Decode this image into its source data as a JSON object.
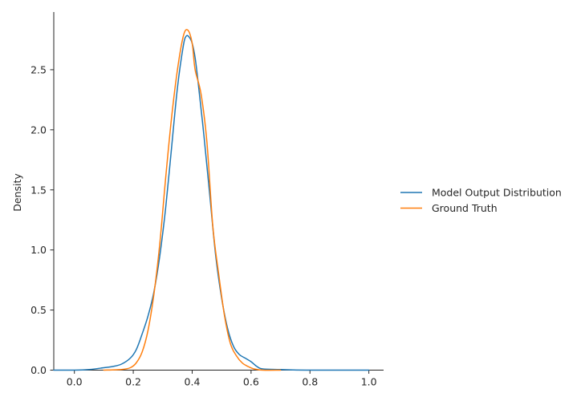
{
  "chart_data": {
    "type": "line",
    "title": "",
    "xlabel": "",
    "ylabel": "Density",
    "xlim": [
      -0.07,
      1.05
    ],
    "ylim": [
      0,
      2.98
    ],
    "x_ticks": [
      0.0,
      0.2,
      0.4,
      0.6,
      0.8,
      1.0
    ],
    "x_tick_labels": [
      "0.0",
      "0.2",
      "0.4",
      "0.6",
      "0.8",
      "1.0"
    ],
    "y_ticks": [
      0.0,
      0.5,
      1.0,
      1.5,
      2.0,
      2.5
    ],
    "y_tick_labels": [
      "0.0",
      "0.5",
      "1.0",
      "1.5",
      "2.0",
      "2.5"
    ],
    "grid": false,
    "legend_position": "right",
    "series": [
      {
        "name": "Model Output Distribution",
        "color": "#1f77b4",
        "points": [
          [
            -0.07,
            0.0
          ],
          [
            0.0,
            0.0
          ],
          [
            0.05,
            0.005
          ],
          [
            0.1,
            0.02
          ],
          [
            0.13,
            0.03
          ],
          [
            0.16,
            0.05
          ],
          [
            0.19,
            0.1
          ],
          [
            0.21,
            0.17
          ],
          [
            0.23,
            0.3
          ],
          [
            0.25,
            0.45
          ],
          [
            0.27,
            0.65
          ],
          [
            0.29,
            0.95
          ],
          [
            0.31,
            1.35
          ],
          [
            0.33,
            1.85
          ],
          [
            0.35,
            2.35
          ],
          [
            0.37,
            2.7
          ],
          [
            0.38,
            2.78
          ],
          [
            0.39,
            2.77
          ],
          [
            0.4,
            2.72
          ],
          [
            0.41,
            2.6
          ],
          [
            0.42,
            2.4
          ],
          [
            0.44,
            1.95
          ],
          [
            0.46,
            1.45
          ],
          [
            0.48,
            0.95
          ],
          [
            0.5,
            0.6
          ],
          [
            0.52,
            0.35
          ],
          [
            0.54,
            0.2
          ],
          [
            0.56,
            0.13
          ],
          [
            0.58,
            0.1
          ],
          [
            0.6,
            0.07
          ],
          [
            0.62,
            0.03
          ],
          [
            0.64,
            0.01
          ],
          [
            0.7,
            0.005
          ],
          [
            0.8,
            0.0
          ],
          [
            1.0,
            0.0
          ]
        ]
      },
      {
        "name": "Ground Truth",
        "color": "#ff7f0e",
        "points": [
          [
            0.1,
            0.0
          ],
          [
            0.16,
            0.005
          ],
          [
            0.19,
            0.02
          ],
          [
            0.21,
            0.06
          ],
          [
            0.23,
            0.15
          ],
          [
            0.25,
            0.33
          ],
          [
            0.27,
            0.63
          ],
          [
            0.29,
            1.05
          ],
          [
            0.31,
            1.6
          ],
          [
            0.33,
            2.1
          ],
          [
            0.35,
            2.5
          ],
          [
            0.37,
            2.78
          ],
          [
            0.385,
            2.83
          ],
          [
            0.4,
            2.72
          ],
          [
            0.41,
            2.5
          ],
          [
            0.43,
            2.3
          ],
          [
            0.45,
            1.9
          ],
          [
            0.47,
            1.2
          ],
          [
            0.49,
            0.8
          ],
          [
            0.51,
            0.45
          ],
          [
            0.53,
            0.22
          ],
          [
            0.55,
            0.12
          ],
          [
            0.57,
            0.06
          ],
          [
            0.59,
            0.03
          ],
          [
            0.61,
            0.01
          ],
          [
            0.64,
            0.0
          ],
          [
            0.7,
            0.0
          ]
        ]
      }
    ]
  }
}
